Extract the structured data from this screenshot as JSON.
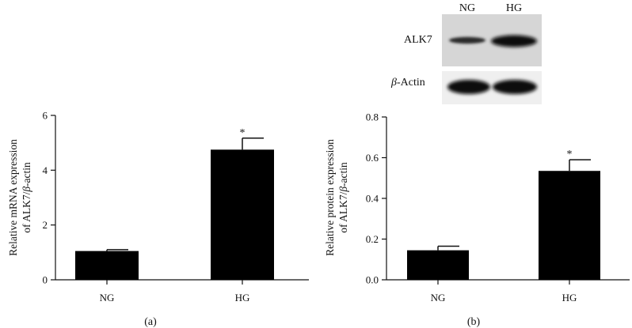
{
  "chart_data": [
    {
      "type": "bar",
      "panel_label": "(a)",
      "categories": [
        "NG",
        "HG"
      ],
      "values": [
        1.05,
        4.75
      ],
      "errors": [
        0.05,
        0.42
      ],
      "significance": [
        "",
        "*"
      ],
      "ylabel_line1": "Relative mRNA expression",
      "ylabel_line2_prefix": "of ALK7/",
      "ylabel_line2_greek": "β",
      "ylabel_line2_suffix": "-actin",
      "ylim": [
        0,
        6
      ],
      "yticks": [
        "0",
        "2",
        "4",
        "6"
      ],
      "ytick_values": [
        0,
        2,
        4,
        6
      ],
      "bar_color": "#000000"
    },
    {
      "type": "bar",
      "panel_label": "(b)",
      "categories": [
        "NG",
        "HG"
      ],
      "values": [
        0.145,
        0.535
      ],
      "errors": [
        0.02,
        0.055
      ],
      "significance": [
        "",
        "*"
      ],
      "ylabel_line1": "Relative protein expression",
      "ylabel_line2_prefix": "of ALK7/",
      "ylabel_line2_greek": "β",
      "ylabel_line2_suffix": "-actin",
      "ylim": [
        0,
        0.8
      ],
      "yticks": [
        "0.0",
        "0.2",
        "0.4",
        "0.6",
        "0.8"
      ],
      "ytick_values": [
        0,
        0.2,
        0.4,
        0.6,
        0.8
      ],
      "bar_color": "#000000"
    }
  ],
  "western_blot": {
    "lanes": [
      "NG",
      "HG"
    ],
    "rows": [
      {
        "label": "ALK7"
      },
      {
        "label_greek": "β",
        "label_suffix": "-Actin"
      }
    ]
  }
}
